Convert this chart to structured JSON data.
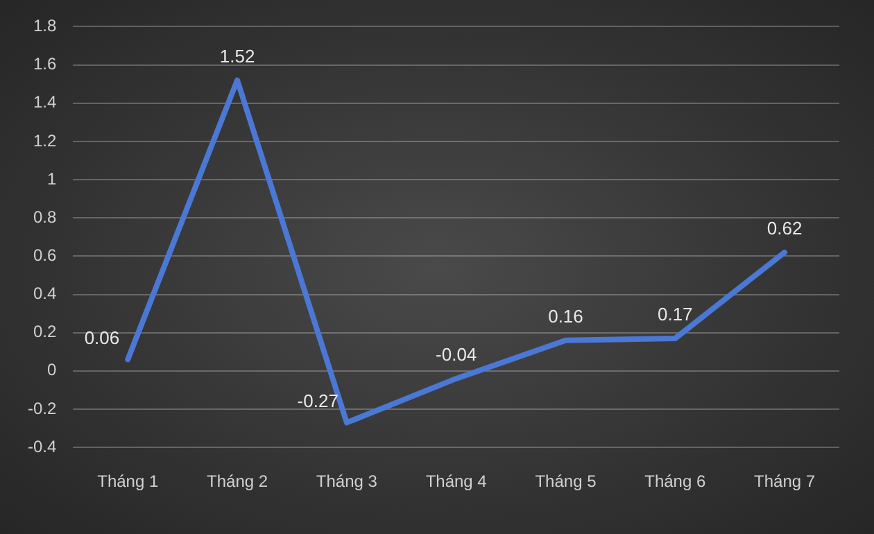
{
  "chart_data": {
    "type": "line",
    "categories": [
      "Tháng 1",
      "Tháng 2",
      "Tháng 3",
      "Tháng 4",
      "Tháng 5",
      "Tháng 6",
      "Tháng 7"
    ],
    "series": [
      {
        "color": "#4a78d4",
        "values": [
          0.06,
          1.52,
          -0.27,
          -0.04,
          0.16,
          0.17,
          0.62
        ]
      }
    ],
    "ylim": [
      -0.4,
      1.8
    ],
    "yticks": [
      -0.4,
      -0.2,
      0,
      0.2,
      0.4,
      0.6,
      0.8,
      1,
      1.2,
      1.4,
      1.6,
      1.8
    ],
    "grid": "y",
    "legend": false,
    "marker": "none",
    "line_style": "solid",
    "data_labels": true
  }
}
